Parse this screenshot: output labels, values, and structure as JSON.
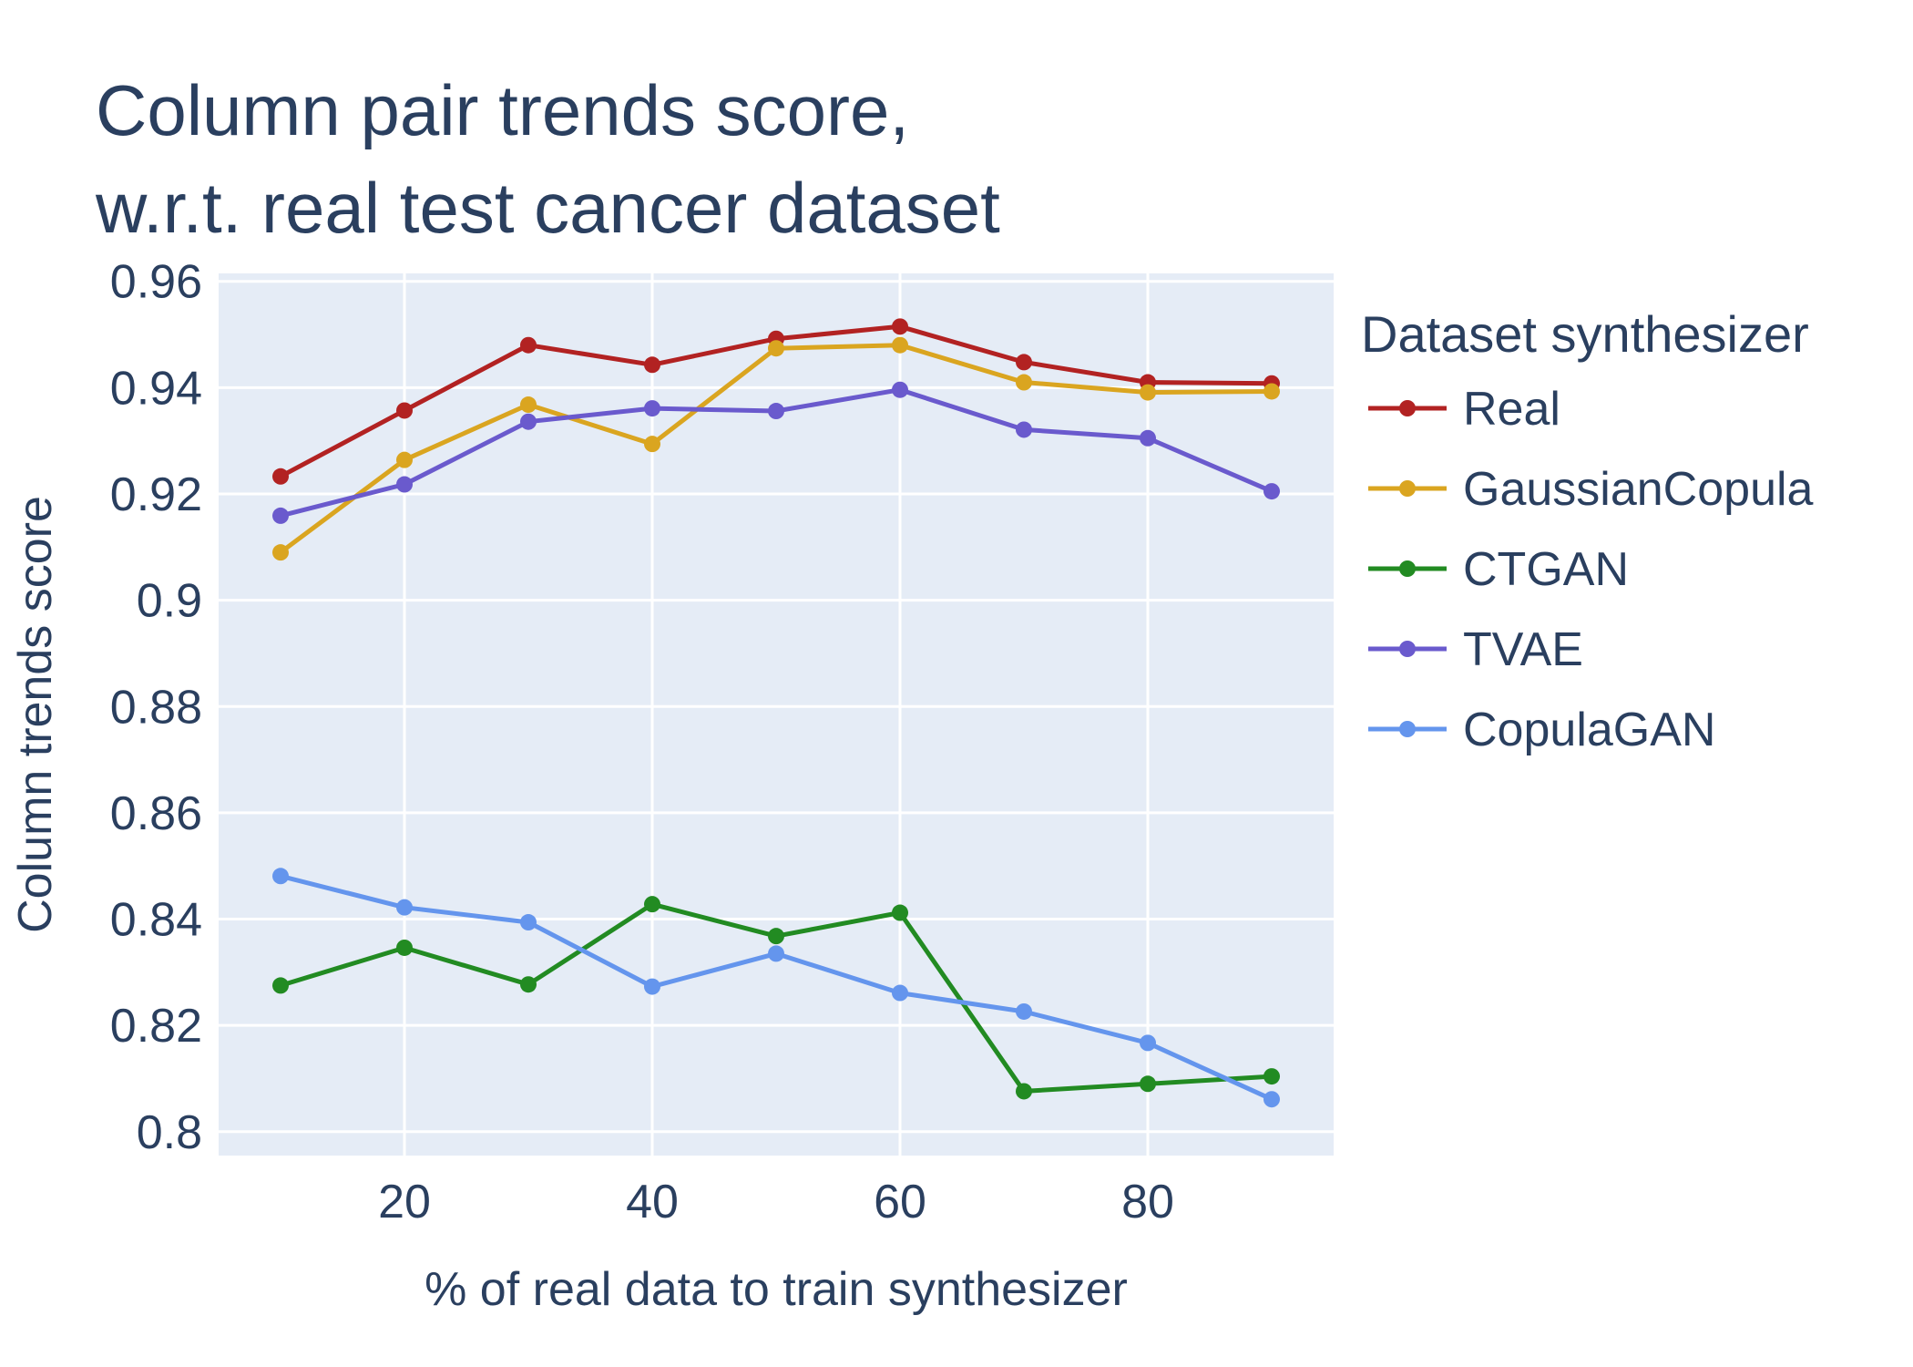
{
  "chart_data": {
    "type": "line",
    "title_lines": [
      "Column pair trends score,",
      "w.r.t. real test cancer dataset"
    ],
    "xlabel": "% of real data to train synthesizer",
    "ylabel": "Column trends score",
    "x": [
      10,
      20,
      30,
      40,
      50,
      60,
      70,
      80,
      90
    ],
    "xlim": [
      5,
      95
    ],
    "ylim": [
      0.7955,
      0.9615
    ],
    "xticks": [
      20,
      40,
      60,
      80
    ],
    "xtick_labels": [
      "20",
      "40",
      "60",
      "80"
    ],
    "yticks": [
      0.8,
      0.82,
      0.84,
      0.86,
      0.88,
      0.9,
      0.92,
      0.94,
      0.96
    ],
    "ytick_labels": [
      "0.8",
      "0.82",
      "0.84",
      "0.86",
      "0.88",
      "0.9",
      "0.92",
      "0.94",
      "0.96"
    ],
    "grid": true,
    "legend_title": "Dataset synthesizer",
    "legend_position": "right",
    "plot_background": "#e5ecf6",
    "series": [
      {
        "name": "Real",
        "color": "#b22222",
        "values": [
          0.9233,
          0.9357,
          0.948,
          0.9443,
          0.9492,
          0.9515,
          0.9448,
          0.941,
          0.9408
        ]
      },
      {
        "name": "GaussianCopula",
        "color": "#daa520",
        "values": [
          0.909,
          0.9264,
          0.9368,
          0.9294,
          0.9474,
          0.948,
          0.941,
          0.9391,
          0.9393
        ]
      },
      {
        "name": "CTGAN",
        "color": "#228b22",
        "values": [
          0.8275,
          0.8346,
          0.8277,
          0.8428,
          0.8368,
          0.8412,
          0.8076,
          0.809,
          0.8104
        ]
      },
      {
        "name": "TVAE",
        "color": "#6a5acd",
        "values": [
          0.9159,
          0.9218,
          0.9336,
          0.9361,
          0.9356,
          0.9396,
          0.9321,
          0.9305,
          0.9205
        ]
      },
      {
        "name": "CopulaGAN",
        "color": "#6495ed",
        "values": [
          0.8481,
          0.8422,
          0.8394,
          0.8273,
          0.8335,
          0.8261,
          0.8226,
          0.8167,
          0.8061
        ]
      }
    ]
  }
}
